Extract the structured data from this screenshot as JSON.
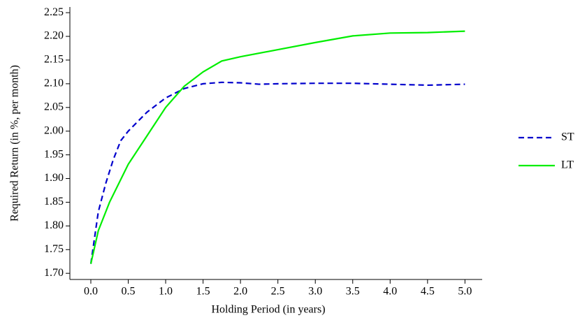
{
  "chart_data": {
    "type": "line",
    "x_label": "Holding Period (in years)",
    "y_label": "Required Return (in %, per month)",
    "xlim": [
      -0.28,
      5.23
    ],
    "ylim": [
      1.687,
      2.262
    ],
    "xticks": [
      {
        "value": 0,
        "label": "0.0"
      },
      {
        "value": 0.5,
        "label": "0.5"
      },
      {
        "value": 1,
        "label": "1.0"
      },
      {
        "value": 1.5,
        "label": "1.5"
      },
      {
        "value": 2,
        "label": "2.0"
      },
      {
        "value": 2.5,
        "label": "2.5"
      },
      {
        "value": 3,
        "label": "3.0"
      },
      {
        "value": 3.5,
        "label": "3.5"
      },
      {
        "value": 4,
        "label": "4.0"
      },
      {
        "value": 4.5,
        "label": "4.5"
      },
      {
        "value": 5,
        "label": "5.0"
      }
    ],
    "yticks": [
      {
        "value": 1.7,
        "label": "1.70"
      },
      {
        "value": 1.75,
        "label": "1.75"
      },
      {
        "value": 1.8,
        "label": "1.80"
      },
      {
        "value": 1.85,
        "label": "1.85"
      },
      {
        "value": 1.9,
        "label": "1.90"
      },
      {
        "value": 1.95,
        "label": "1.95"
      },
      {
        "value": 2.0,
        "label": "2.00"
      },
      {
        "value": 2.05,
        "label": "2.05"
      },
      {
        "value": 2.1,
        "label": "2.10"
      },
      {
        "value": 2.15,
        "label": "2.15"
      },
      {
        "value": 2.2,
        "label": "2.20"
      },
      {
        "value": 2.25,
        "label": "2.25"
      }
    ],
    "legend": "right",
    "series": [
      {
        "name": "ST",
        "color": "#0000cc",
        "dash": "dashed",
        "x": [
          0,
          0.1,
          0.2,
          0.3,
          0.4,
          0.5,
          0.75,
          1.0,
          1.25,
          1.5,
          1.75,
          2.0,
          2.25,
          2.5,
          3.0,
          3.5,
          4.0,
          4.5,
          5.0
        ],
        "values": [
          1.72,
          1.83,
          1.89,
          1.94,
          1.98,
          2.0,
          2.04,
          2.07,
          2.09,
          2.1,
          2.103,
          2.102,
          2.099,
          2.1,
          2.101,
          2.101,
          2.099,
          2.097,
          2.099
        ]
      },
      {
        "name": "LT",
        "color": "#00ee00",
        "dash": "solid",
        "x": [
          0,
          0.1,
          0.25,
          0.5,
          0.75,
          1.0,
          1.25,
          1.5,
          1.75,
          2.0,
          2.5,
          3.0,
          3.5,
          4.0,
          4.5,
          5.0
        ],
        "values": [
          1.72,
          1.79,
          1.85,
          1.93,
          1.99,
          2.05,
          2.095,
          2.125,
          2.148,
          2.157,
          2.172,
          2.187,
          2.201,
          2.207,
          2.208,
          2.211
        ]
      }
    ]
  }
}
